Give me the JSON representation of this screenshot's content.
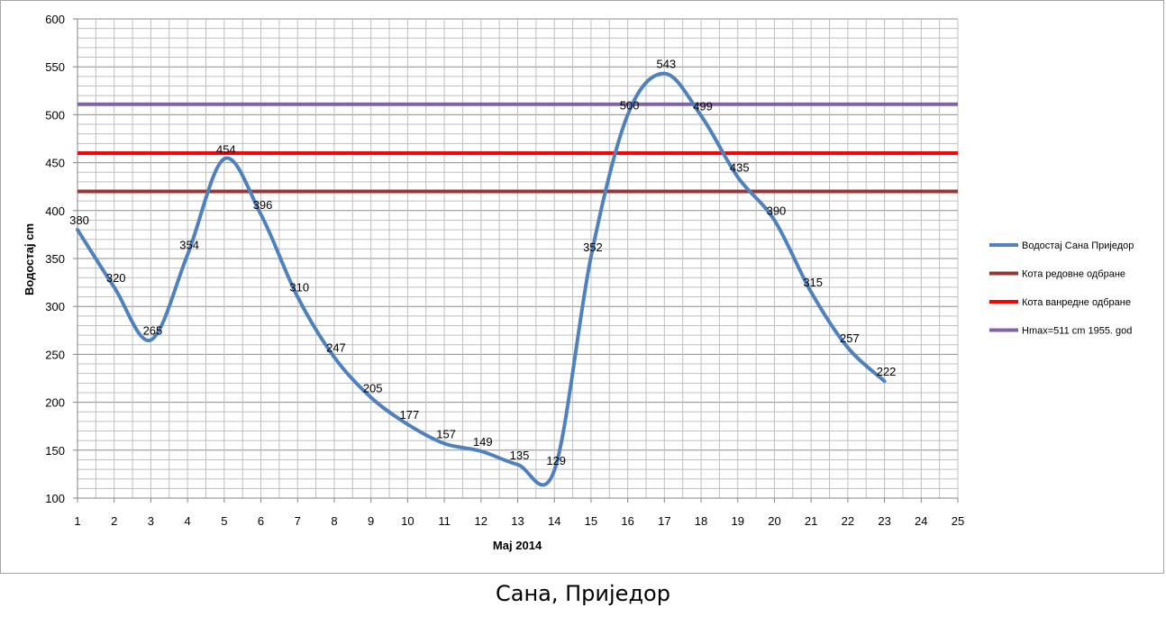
{
  "caption": "Сана, Приједор",
  "chart_data": {
    "type": "line",
    "title": "",
    "xlabel": "Мај 2014",
    "ylabel": "Водостај cm",
    "x": [
      1,
      2,
      3,
      4,
      5,
      6,
      7,
      8,
      9,
      10,
      11,
      12,
      13,
      14,
      15,
      16,
      17,
      18,
      19,
      20,
      21,
      22,
      23
    ],
    "xlim": [
      1,
      25
    ],
    "x_ticks": [
      "1",
      "2",
      "3",
      "4",
      "5",
      "6",
      "7",
      "8",
      "9",
      "10",
      "11",
      "12",
      "13",
      "14",
      "15",
      "16",
      "17",
      "18",
      "19",
      "20",
      "21",
      "22",
      "23",
      "24",
      "25"
    ],
    "ylim": [
      100,
      600
    ],
    "y_ticks": [
      "100",
      "150",
      "200",
      "250",
      "300",
      "350",
      "400",
      "450",
      "500",
      "550",
      "600"
    ],
    "grid": true,
    "legend_position": "right",
    "series": [
      {
        "name": "Водостај Сана Приједор",
        "color": "#4f81bd",
        "smooth": true,
        "values": [
          380,
          320,
          265,
          354,
          454,
          396,
          310,
          247,
          205,
          177,
          157,
          149,
          135,
          129,
          352,
          500,
          543,
          499,
          435,
          390,
          315,
          257,
          222
        ],
        "labels": [
          "380",
          "320",
          "265",
          "354",
          "454",
          "396",
          "310",
          "247",
          "205",
          "177",
          "157",
          "149",
          "135",
          "129",
          "352",
          "500",
          "543",
          "499",
          "435",
          "390",
          "315",
          "257",
          "222"
        ]
      },
      {
        "name": "Кота редовне одбране",
        "color": "#953735",
        "constant": 420
      },
      {
        "name": "Кота ванредне одбране",
        "color": "#ff0000",
        "constant": 460
      },
      {
        "name": "Hmax=511 cm 1955. god",
        "color": "#8064a2",
        "constant": 511
      }
    ]
  }
}
